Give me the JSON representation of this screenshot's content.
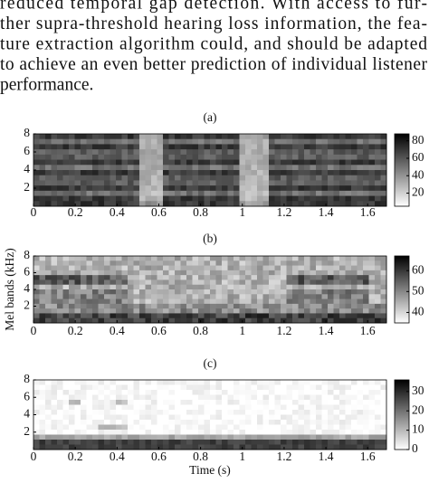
{
  "body": {
    "lines": [
      "reduced temporal gap detection.  With access to fur-",
      "ther supra-threshold hearing loss information, the fea-",
      "ture extraction algorithm could, and should be adapted",
      "to achieve an even better prediction of individual listener",
      "performance."
    ]
  },
  "figure": {
    "ylabel": "Mel bands (kHz)",
    "xlabel": "Time (s)",
    "panels": [
      {
        "label": "(a)",
        "xlim": [
          0,
          1.69
        ],
        "ylim": [
          0,
          8
        ],
        "xticks": [
          0,
          0.2,
          0.4,
          0.6,
          0.8,
          1,
          1.2,
          1.4,
          1.6
        ],
        "yticks": [
          2,
          4,
          6,
          8
        ],
        "colorbar": {
          "lim": [
            5,
            88
          ],
          "ticks": [
            20,
            40,
            60,
            80
          ]
        }
      },
      {
        "label": "(b)",
        "xlim": [
          0,
          1.69
        ],
        "ylim": [
          0,
          8
        ],
        "xticks": [
          0,
          0.2,
          0.4,
          0.6,
          0.8,
          1,
          1.2,
          1.4,
          1.6
        ],
        "yticks": [
          2,
          4,
          6,
          8
        ],
        "colorbar": {
          "lim": [
            35,
            67
          ],
          "ticks": [
            40,
            50,
            60
          ]
        }
      },
      {
        "label": "(c)",
        "xlim": [
          0,
          1.69
        ],
        "ylim": [
          0,
          8
        ],
        "xticks": [
          0,
          0.2,
          0.4,
          0.6,
          0.8,
          1,
          1.2,
          1.4,
          1.6
        ],
        "yticks": [
          2,
          4,
          6,
          8
        ],
        "colorbar": {
          "lim": [
            0,
            36
          ],
          "ticks": [
            0,
            10,
            20,
            30
          ]
        }
      }
    ]
  }
}
